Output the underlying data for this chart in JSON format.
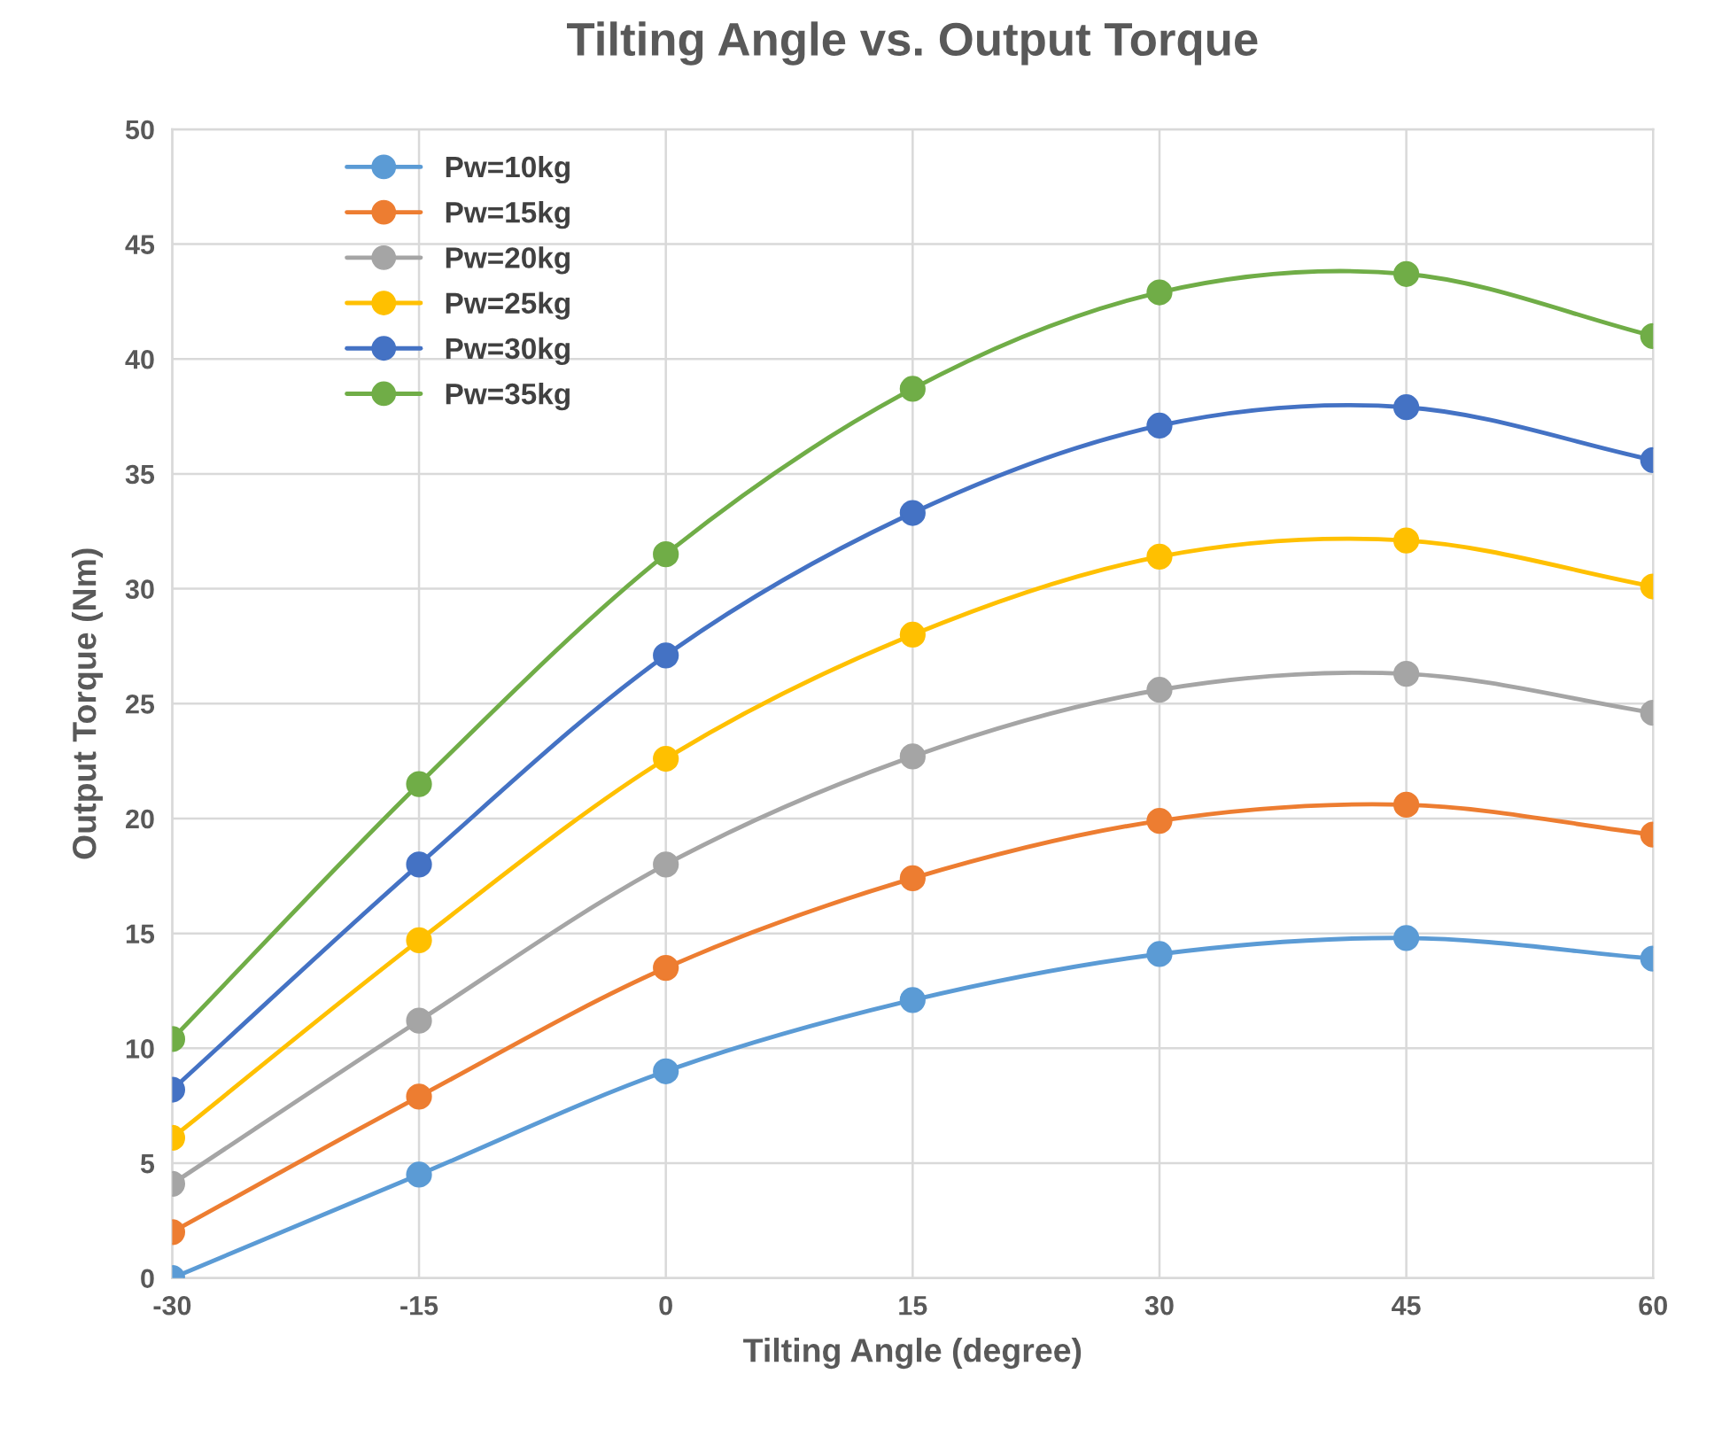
{
  "chart_data": {
    "type": "line",
    "title": "Tilting Angle vs. Output Torque",
    "xlabel": "Tilting Angle (degree)",
    "ylabel": "Output Torque (Nm)",
    "x": [
      -30,
      -15,
      0,
      15,
      30,
      45,
      60
    ],
    "series": [
      {
        "name": "Pw=10kg",
        "color": "#5b9bd5",
        "values": [
          0,
          4.5,
          9.0,
          12.1,
          14.1,
          14.8,
          13.9
        ]
      },
      {
        "name": "Pw=15kg",
        "color": "#ed7d31",
        "values": [
          2.0,
          7.9,
          13.5,
          17.4,
          19.9,
          20.6,
          19.3
        ]
      },
      {
        "name": "Pw=20kg",
        "color": "#a5a5a5",
        "values": [
          4.1,
          11.2,
          18.0,
          22.7,
          25.6,
          26.3,
          24.6
        ]
      },
      {
        "name": "Pw=25kg",
        "color": "#ffc000",
        "values": [
          6.1,
          14.7,
          22.6,
          28.0,
          31.4,
          32.1,
          30.1
        ]
      },
      {
        "name": "Pw=30kg",
        "color": "#4472c4",
        "values": [
          8.2,
          18.0,
          27.1,
          33.3,
          37.1,
          37.9,
          35.6
        ]
      },
      {
        "name": "Pw=35kg",
        "color": "#70ad47",
        "values": [
          10.4,
          21.5,
          31.5,
          38.7,
          42.9,
          43.7,
          41.0
        ]
      }
    ],
    "xlim": [
      -30,
      60
    ],
    "xticks": [
      -30,
      -15,
      0,
      15,
      30,
      45,
      60
    ],
    "ylim": [
      0,
      50
    ],
    "yticks": [
      0,
      5,
      10,
      15,
      20,
      25,
      30,
      35,
      40,
      45,
      50
    ],
    "grid": true,
    "legend": "top left",
    "marker": "circle",
    "line_style": "solid"
  }
}
